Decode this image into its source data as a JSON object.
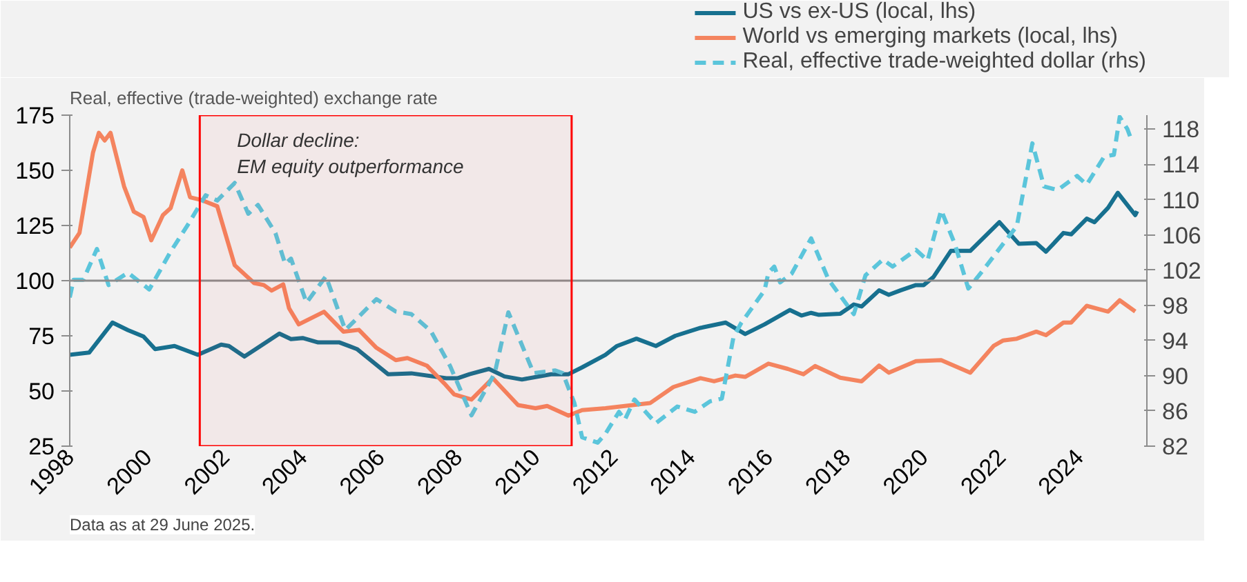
{
  "chart_data": {
    "type": "line",
    "title": "Real, effective (trade-weighted) exchange rate",
    "xlim": [
      1998,
      2025.75
    ],
    "xticks": [
      1998,
      2000,
      2002,
      2004,
      2006,
      2008,
      2010,
      2012,
      2014,
      2016,
      2018,
      2020,
      2022,
      2024
    ],
    "ylim": [
      25,
      175
    ],
    "yticks": [
      25,
      50,
      75,
      100,
      125,
      150,
      175
    ],
    "y2lim": [
      82,
      119.6
    ],
    "y2ticks": [
      82,
      86,
      90,
      94,
      98,
      102,
      106,
      110,
      114,
      118
    ],
    "grid": false,
    "legend": "top right",
    "marker": "none",
    "ref_lines": [
      {
        "axis": "y",
        "value": 100,
        "color": "#8c8c8c",
        "line_style": "solid"
      }
    ],
    "bands": [
      {
        "axis": "x",
        "from": 2001.35,
        "to": 2010.93,
        "label": "Dollar decline:\nEM equity outperformance",
        "color": "#ff0000"
      }
    ],
    "annotations": [
      "Data as at 29 June 2025."
    ],
    "series": [
      {
        "name": "US vs ex-US (local, lhs)",
        "color": "#17708f",
        "line_style": "solid",
        "x": [
          1998.0,
          1998.5,
          1999.1,
          1999.5,
          1999.9,
          2000.2,
          2000.7,
          2001.3,
          2001.9,
          2002.1,
          2002.5,
          2003.4,
          2003.7,
          2004.0,
          2004.4,
          2004.95,
          2005.4,
          2006.2,
          2006.8,
          2007.7,
          2008.0,
          2008.3,
          2008.8,
          2009.2,
          2009.65,
          2010.4,
          2010.85,
          2011.2,
          2011.8,
          2012.1,
          2012.6,
          2013.1,
          2013.6,
          2014.25,
          2014.9,
          2015.4,
          2015.9,
          2016.55,
          2016.85,
          2017.1,
          2017.3,
          2017.85,
          2018.2,
          2018.4,
          2018.85,
          2019.1,
          2019.4,
          2019.8,
          2020.0,
          2020.25,
          2020.7,
          2021.2,
          2021.95,
          2022.45,
          2022.9,
          2023.15,
          2023.6,
          2023.8,
          2024.2,
          2024.4,
          2024.75,
          2025.0,
          2025.45,
          2025.5
        ],
        "values": [
          66.4,
          67.4,
          81,
          77.6,
          74.7,
          69,
          70.4,
          66.4,
          71,
          70.4,
          65.6,
          76,
          73.5,
          74,
          72,
          72,
          69,
          57.6,
          58,
          55.8,
          55.8,
          57.6,
          60,
          56.6,
          55.2,
          57.6,
          57.6,
          60.7,
          66.4,
          70.4,
          73.7,
          70.4,
          75,
          78.6,
          81,
          75.8,
          80.2,
          86.7,
          84.2,
          85.4,
          84.5,
          85,
          89.2,
          88.3,
          95.6,
          93.6,
          95.6,
          98,
          98,
          101.6,
          113.5,
          113.5,
          126.5,
          116.7,
          117,
          113.1,
          121.6,
          121,
          128.1,
          126.5,
          133,
          139.8,
          129.7,
          131.5
        ]
      },
      {
        "name": "World vs emerging markets (local, lhs)",
        "color": "#f4845f",
        "line_style": "solid",
        "x": [
          1998.0,
          1998.25,
          1998.6,
          1998.75,
          1998.9,
          1999.05,
          1999.4,
          1999.65,
          1999.9,
          2000.1,
          2000.4,
          2000.6,
          2000.9,
          2001.1,
          2001.4,
          2001.8,
          2002.25,
          2002.75,
          2003.0,
          2003.2,
          2003.5,
          2003.65,
          2003.9,
          2004.55,
          2005.05,
          2005.45,
          2005.9,
          2006.4,
          2006.7,
          2007.2,
          2007.65,
          2007.9,
          2008.35,
          2008.9,
          2009.55,
          2010.0,
          2010.3,
          2010.85,
          2011.2,
          2011.8,
          2012.95,
          2013.55,
          2014.25,
          2014.6,
          2015.15,
          2015.4,
          2016.0,
          2016.5,
          2016.9,
          2017.2,
          2017.85,
          2018.4,
          2018.85,
          2019.1,
          2019.8,
          2020.45,
          2021.2,
          2021.8,
          2022.05,
          2022.4,
          2022.9,
          2023.15,
          2023.6,
          2023.8,
          2024.2,
          2024.75,
          2025.05,
          2025.45
        ],
        "values": [
          115,
          121.6,
          158.1,
          167,
          163.5,
          167,
          142.7,
          131.3,
          128.9,
          118.3,
          129.7,
          132.9,
          150,
          137.8,
          136.5,
          133.7,
          107,
          98.9,
          98,
          95.5,
          98.3,
          87.5,
          80.2,
          85.9,
          76.9,
          77.7,
          69.6,
          64,
          64.9,
          61.5,
          53.4,
          48.5,
          46.1,
          55.8,
          43.6,
          42.2,
          43.2,
          38.8,
          41.3,
          42.2,
          44.5,
          51.8,
          55.8,
          54.4,
          57,
          56.4,
          62.4,
          60,
          57.6,
          61.3,
          56,
          54.4,
          61.5,
          58.3,
          63.5,
          64,
          58.3,
          70.4,
          72.9,
          73.7,
          76.9,
          75.3,
          81,
          81,
          88.6,
          86,
          91.1,
          86
        ]
      },
      {
        "name": "Real, effective trade-weighted dollar (rhs)",
        "color": "#5bc5db",
        "line_style": "dashed",
        "axis": "y2",
        "x": [
          1998.0,
          1998.1,
          1998.35,
          1998.7,
          1999.0,
          1999.5,
          2000.05,
          2000.6,
          2001.05,
          2001.5,
          2001.8,
          2002.25,
          2002.6,
          2002.85,
          2003.3,
          2003.55,
          2003.7,
          2004.1,
          2004.6,
          2005.1,
          2005.9,
          2006.4,
          2006.8,
          2007.3,
          2007.8,
          2008.35,
          2008.95,
          2009.3,
          2009.95,
          2010.5,
          2010.7,
          2011.0,
          2011.2,
          2011.6,
          2011.8,
          2012.15,
          2012.3,
          2012.55,
          2013.1,
          2013.65,
          2014.1,
          2014.5,
          2014.8,
          2015.1,
          2015.3,
          2015.9,
          2016.0,
          2016.15,
          2016.3,
          2016.6,
          2017.1,
          2017.55,
          2017.9,
          2018.2,
          2018.5,
          2018.95,
          2019.2,
          2019.8,
          2020.1,
          2020.45,
          2020.8,
          2021.15,
          2021.55,
          2022.05,
          2022.4,
          2022.8,
          2023.1,
          2023.45,
          2023.95,
          2024.2,
          2024.65,
          2024.9,
          2025.05,
          2025.25,
          2025.35
        ],
        "values": [
          98.9,
          100.9,
          100.9,
          104.4,
          100.3,
          101.7,
          99.8,
          104.1,
          107.2,
          110.5,
          109.9,
          111.9,
          108.4,
          109.4,
          106.2,
          102.7,
          103.3,
          98.3,
          101.3,
          95.2,
          98.7,
          97.3,
          97,
          95.1,
          91.1,
          85.5,
          90.3,
          97.2,
          90.3,
          90.6,
          90.3,
          86.9,
          83,
          82.4,
          83.4,
          85.9,
          85,
          87.3,
          84.6,
          86.5,
          85.9,
          87.1,
          87.4,
          94.4,
          96,
          99.7,
          101.7,
          102.4,
          100.6,
          101.6,
          105.6,
          100.9,
          98.8,
          97.0,
          101.4,
          103.2,
          102.4,
          104.3,
          103.1,
          108.8,
          105,
          99.9,
          102.1,
          105,
          107,
          116.4,
          111.5,
          111.1,
          112.7,
          111.7,
          114.9,
          115.1,
          119.4,
          118,
          116.8
        ]
      }
    ]
  }
}
